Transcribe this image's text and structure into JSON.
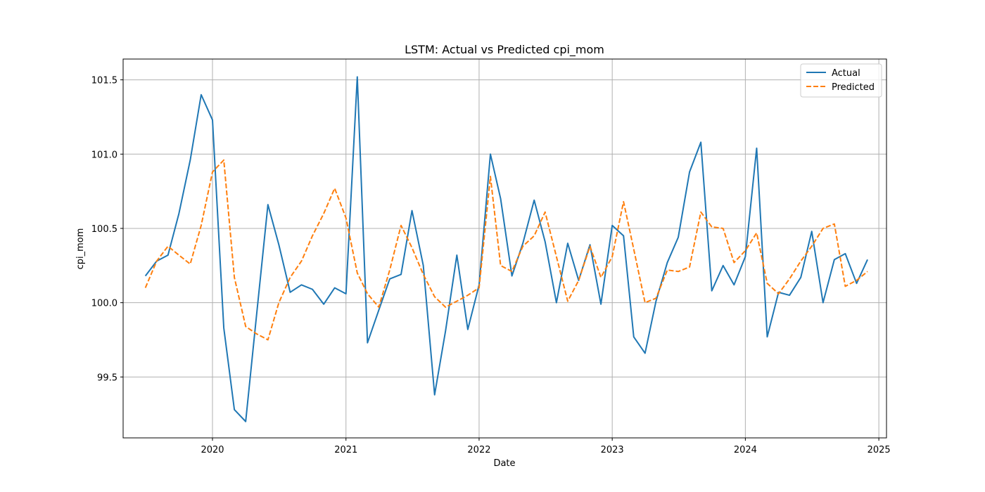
{
  "chart_data": {
    "type": "line",
    "title": "LSTM: Actual vs Predicted cpi_mom",
    "xlabel": "Date",
    "ylabel": "cpi_mom",
    "xlim": [
      "2019-05-01",
      "2025-01-22"
    ],
    "ylim": [
      99.09,
      101.64
    ],
    "x_ticks": [
      "2020",
      "2021",
      "2022",
      "2023",
      "2024",
      "2025"
    ],
    "y_ticks": [
      "99.5",
      "100.0",
      "100.5",
      "101.0",
      "101.5"
    ],
    "grid": true,
    "legend_position": "top-right",
    "x": [
      "2019-07",
      "2019-08",
      "2019-09",
      "2019-10",
      "2019-11",
      "2019-12",
      "2020-01",
      "2020-02",
      "2020-03",
      "2020-04",
      "2020-05",
      "2020-06",
      "2020-07",
      "2020-08",
      "2020-09",
      "2020-10",
      "2020-11",
      "2020-12",
      "2021-01",
      "2021-02",
      "2021-03",
      "2021-04",
      "2021-05",
      "2021-06",
      "2021-07",
      "2021-08",
      "2021-09",
      "2021-10",
      "2021-11",
      "2021-12",
      "2022-01",
      "2022-02",
      "2022-03",
      "2022-04",
      "2022-05",
      "2022-06",
      "2022-07",
      "2022-08",
      "2022-09",
      "2022-10",
      "2022-11",
      "2022-12",
      "2023-01",
      "2023-02",
      "2023-03",
      "2023-04",
      "2023-05",
      "2023-06",
      "2023-07",
      "2023-08",
      "2023-09",
      "2023-10",
      "2023-11",
      "2023-12",
      "2024-01",
      "2024-02",
      "2024-03",
      "2024-04",
      "2024-05",
      "2024-06",
      "2024-07",
      "2024-08",
      "2024-09",
      "2024-10",
      "2024-11",
      "2024-12"
    ],
    "series": [
      {
        "name": "Actual",
        "color": "#1f77b4",
        "style": "solid",
        "values": [
          100.18,
          100.28,
          100.32,
          100.6,
          100.96,
          101.4,
          101.23,
          99.83,
          99.28,
          99.2,
          99.92,
          100.66,
          100.39,
          100.07,
          100.12,
          100.09,
          99.99,
          100.1,
          100.06,
          101.52,
          99.73,
          99.95,
          100.16,
          100.19,
          100.62,
          100.25,
          99.38,
          99.81,
          100.32,
          99.82,
          100.12,
          101.0,
          100.7,
          100.18,
          100.4,
          100.69,
          100.41,
          100.0,
          100.4,
          100.15,
          100.39,
          99.99,
          100.52,
          100.45,
          99.77,
          99.66,
          100.01,
          100.27,
          100.44,
          100.88,
          101.08,
          100.08,
          100.25,
          100.12,
          100.31,
          101.04,
          99.77,
          100.07,
          100.05,
          100.17,
          100.48,
          100.0,
          100.29,
          100.33,
          100.13,
          100.29
        ]
      },
      {
        "name": "Predicted",
        "color": "#ff7f0e",
        "style": "dashed",
        "values": [
          100.1,
          100.28,
          100.38,
          100.32,
          100.26,
          100.52,
          100.88,
          100.96,
          100.17,
          99.84,
          99.79,
          99.75,
          100.0,
          100.17,
          100.28,
          100.45,
          100.6,
          100.77,
          100.57,
          100.2,
          100.06,
          99.97,
          100.22,
          100.52,
          100.37,
          100.19,
          100.04,
          99.97,
          100.01,
          100.05,
          100.1,
          100.85,
          100.25,
          100.21,
          100.38,
          100.45,
          100.61,
          100.31,
          100.01,
          100.15,
          100.38,
          100.17,
          100.31,
          100.68,
          100.36,
          100.0,
          100.03,
          100.22,
          100.21,
          100.24,
          100.61,
          100.51,
          100.5,
          100.27,
          100.35,
          100.47,
          100.13,
          100.06,
          100.16,
          100.28,
          100.38,
          100.5,
          100.53,
          100.11,
          100.15,
          100.21
        ]
      }
    ]
  }
}
